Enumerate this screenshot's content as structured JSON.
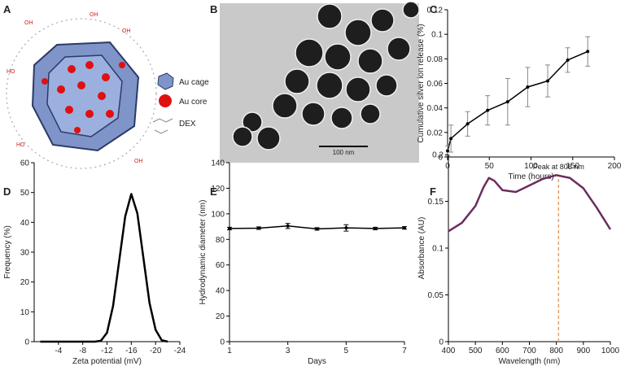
{
  "panels": [
    "A",
    "B",
    "C",
    "D",
    "E",
    "F"
  ],
  "diagram": {
    "legend": [
      "Au cage",
      "Au core",
      "DEX"
    ]
  },
  "micrograph": {
    "scale_bar": "100 nm"
  },
  "chart_data": [
    {
      "type": "line",
      "x_label": "Time (hours)",
      "y_label": "Cumulative silver ion release (%)",
      "color": "#000000",
      "markers": true,
      "x": [
        0,
        4,
        24,
        48,
        72,
        96,
        120,
        144,
        168
      ],
      "values": [
        0.005,
        0.015,
        0.027,
        0.038,
        0.045,
        0.057,
        0.062,
        0.079,
        0.086
      ],
      "errors": [
        0.004,
        0.011,
        0.01,
        0.012,
        0.019,
        0.016,
        0.013,
        0.01,
        0.012
      ],
      "xlim": [
        0,
        200
      ],
      "xticks": [
        0,
        50,
        100,
        150,
        200
      ],
      "ylim": [
        0,
        0.12
      ],
      "yticks": [
        0,
        0.02,
        0.04,
        0.06,
        0.08,
        0.1,
        0.12
      ]
    },
    {
      "type": "line",
      "x_label": "Zeta potential (mV)",
      "y_label": "Frequency (%)",
      "color": "#000000",
      "markers": false,
      "x": [
        -1,
        -4,
        -8,
        -10,
        -11,
        -12,
        -13,
        -14,
        -15,
        -16,
        -17,
        -18,
        -19,
        -20,
        -21,
        -22
      ],
      "values": [
        0,
        0,
        0,
        0,
        0.3,
        3,
        12,
        27,
        42,
        49.5,
        43,
        28,
        13,
        4,
        0.5,
        0
      ],
      "xlim": [
        0,
        -24
      ],
      "xticks": [
        -4,
        -8,
        -12,
        -16,
        -20,
        -24
      ],
      "ylim": [
        0,
        60
      ],
      "yticks": [
        0,
        10,
        20,
        30,
        40,
        50,
        60
      ]
    },
    {
      "type": "line",
      "x_label": "Days",
      "y_label": "Hydrodynamic diameter (nm)",
      "color": "#000000",
      "markers": true,
      "x": [
        1,
        2,
        3,
        4,
        5,
        6,
        7
      ],
      "values": [
        88.5,
        88.8,
        90.5,
        88.2,
        89,
        88.5,
        89
      ],
      "errors": [
        1,
        1,
        2,
        1,
        2.5,
        1,
        1
      ],
      "xlim": [
        1,
        7
      ],
      "xticks": [
        1,
        3,
        5,
        7
      ],
      "ylim": [
        0,
        140
      ],
      "yticks": [
        0,
        20,
        40,
        60,
        80,
        100,
        120,
        140
      ]
    },
    {
      "type": "line",
      "x_label": "Wavelength (nm)",
      "y_label": "Absorbance (AU)",
      "color": "#6b2c5e",
      "markers": false,
      "x": [
        400,
        450,
        500,
        530,
        550,
        570,
        600,
        650,
        700,
        750,
        800,
        850,
        900,
        950,
        1000
      ],
      "values": [
        0.118,
        0.127,
        0.145,
        0.165,
        0.175,
        0.172,
        0.162,
        0.16,
        0.167,
        0.174,
        0.178,
        0.175,
        0.164,
        0.143,
        0.12
      ],
      "annotation": {
        "text": "Peak at 808 nm",
        "x": 808,
        "color": "#e8a060"
      },
      "xlim": [
        400,
        1000
      ],
      "xticks": [
        400,
        500,
        600,
        700,
        800,
        900,
        1000
      ],
      "ylim": [
        0,
        0.2
      ],
      "yticks": [
        0,
        0.05,
        0.1,
        0.15,
        0.2
      ]
    }
  ]
}
